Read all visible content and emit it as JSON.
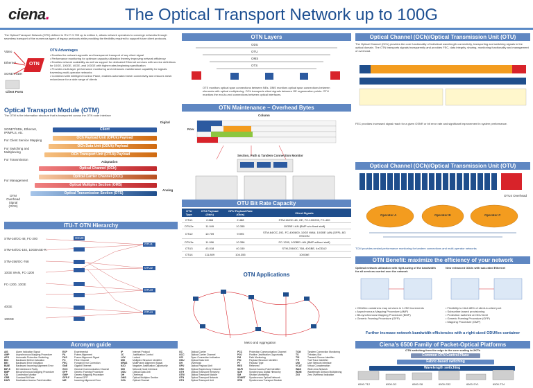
{
  "header": {
    "logo": "ciena",
    "title": "The Optical Transport Network up to 100G"
  },
  "intro": {
    "text": "The Optical Transport Network (OTN) defined in ITU-T G.709 up to edition 4, allows network operators to converge networks through seamless transport of the numerous types of legacy protocols while providing the flexibility required to support future client protocols.",
    "advantages_title": "OTN Advantages",
    "advantages": [
      "Enables the network-agnostic and transparent transport of any client signal",
      "Performance monitoring for optimum capacity utilization thereby improving network efficiency",
      "Enables network scalability as well as support for dedicated Ethernet services with service definitions for 10GE, 100GE, 40GE, and 100GE with higher rates beginning specification",
      "Provides multi-layer performance monitoring and enhances maintenance capability for signals traversing multi-operator networks",
      "Combined with intelligent Control Plane, enables automated mesh connectivity and reduces mesh redundance for a wide range of clients"
    ],
    "client_labels": [
      "Video",
      "Ethernet",
      "SONET/SDH",
      "Client Ports"
    ],
    "otn_label": "OTN"
  },
  "otm": {
    "title": "Optical Transport Module (OTM)",
    "subtitle": "The OTM is the information structure that is transported across the OTN node interface",
    "side_labels": [
      "SONET/SDH, Ethernet, IP/MPLS, etc.",
      "For Client Service Mapping",
      "For Switching and Multiplexing",
      "For Transmission",
      "For Management",
      "OTM Overhead Signal (OOS)"
    ],
    "layers": [
      "Client",
      "OCh Payload Unit (OPUk) Payload",
      "OCh Data Unit (ODUk) Payload",
      "OCh Transport Unit (OTUk) Payload",
      "Adaptation",
      "Optical Channel (OCh)",
      "Optical Carrier Channel (OCC)",
      "Optical Multiplex Section (OMS)",
      "Optical Transmission Section (OTS)"
    ],
    "domain_labels": [
      "Digital",
      "Analog"
    ]
  },
  "hierarchy": {
    "title": "ITU-T OTN Hierarchy",
    "left_labels": [
      "STM-16/OC-48, FC-200",
      "STM-64/OC-192, 10GBASE-R",
      "STM-256/OC-768",
      "10GE WAN, FC-1200",
      "FC-1200, 10GE",
      "40GE",
      "100GE"
    ],
    "nodes": [
      "ODU0",
      "ODU1",
      "ODU2",
      "ODU2e",
      "ODU3",
      "ODU4",
      "ODUflex",
      "OTU1",
      "OTU2",
      "OTU3",
      "OTU4"
    ]
  },
  "acronyms": {
    "title": "Acronym guide",
    "columns": [
      [
        [
          "AIS",
          "Alarm Indication Signal"
        ],
        [
          "AMP",
          "Asynchronous Mapping Procedure"
        ],
        [
          "APS",
          "Automatic Protection Switching"
        ],
        [
          "BDI",
          "Backward Defect Indication"
        ],
        [
          "BEI",
          "Backward Error Indication"
        ],
        [
          "BIAE",
          "Backward Incoming Alignment Error"
        ],
        [
          "BIP-8",
          "Bit Interleaved Parity"
        ],
        [
          "BMP",
          "Bit-synchronous Mapping Procedure"
        ],
        [
          "CM",
          "Connection Monitor"
        ],
        [
          "CBR",
          "Constant Bit Rate"
        ],
        [
          "DAPI",
          "Destination Access Point Identifier"
        ]
      ],
      [
        [
          "EXP",
          "Experimental"
        ],
        [
          "FA",
          "Frame Alignment"
        ],
        [
          "FAS",
          "Frame Alignment Signal"
        ],
        [
          "FC",
          "Fibre Channel"
        ],
        [
          "FEC",
          "Forward Error Correction"
        ],
        [
          "GbE",
          "Gigabit Ethernet"
        ],
        [
          "GCC",
          "General Communication Channel"
        ],
        [
          "GFP",
          "Generic Framing Procedure"
        ],
        [
          "GMP",
          "Generic Mapping Procedure"
        ],
        [
          "GFP-F",
          "Framed GFP"
        ],
        [
          "IAE",
          "Incoming Alignment Error"
        ]
      ],
      [
        [
          "IP",
          "Internet Protocol"
        ],
        [
          "JC",
          "Justification Control"
        ],
        [
          "LCK",
          "Locked"
        ],
        [
          "MSI",
          "Multiplex Structure Identifier"
        ],
        [
          "MFAS",
          "MultiFrame Alignment Signal"
        ],
        [
          "NJO",
          "Negative Justification Opportunity"
        ],
        [
          "NNI",
          "Network Node Interface"
        ],
        [
          "ODU",
          "Optical Data Unit"
        ],
        [
          "OH",
          "Overhead"
        ],
        [
          "OMS",
          "Optical Multiplex Section"
        ],
        [
          "OCh",
          "Optical Channel"
        ]
      ],
      [
        [
          "OC",
          "Optical Carrier"
        ],
        [
          "OCC",
          "Optical Carrier Channel"
        ],
        [
          "OCI",
          "Open Connection Indication"
        ],
        [
          "ODU",
          "Optical Data Unit"
        ],
        [
          "OH",
          "Overhead"
        ],
        [
          "OPU",
          "Optical Payload Unit"
        ],
        [
          "OSC",
          "Optical Supervisory Channel"
        ],
        [
          "OTH",
          "Optical Transport Hierarchy"
        ],
        [
          "OTM",
          "Optical Transport Module"
        ],
        [
          "OTN",
          "Optical Transport Network"
        ],
        [
          "OTU",
          "Optical Transport Unit"
        ]
      ],
      [
        [
          "PCC",
          "Protection Communication Channel"
        ],
        [
          "PJO",
          "Positive Justification Opportunity"
        ],
        [
          "PM",
          "Path Monitoring"
        ],
        [
          "PSI",
          "Payload Structure Identifier"
        ],
        [
          "PT",
          "Payload Type"
        ],
        [
          "RES",
          "Reserved"
        ],
        [
          "SAPI",
          "Source Access Point Identifier"
        ],
        [
          "SDH",
          "Synchronous Digital Hierarchy"
        ],
        [
          "SM",
          "Section Monitoring"
        ],
        [
          "SONET",
          "Synchronous Optical Network"
        ],
        [
          "STM",
          "Synchronous Transport Module"
        ]
      ],
      [
        [
          "TCM",
          "Tandem Connection Monitoring"
        ],
        [
          "TS",
          "Tributary Slot"
        ],
        [
          "TSI",
          "Transmit Source Identifier"
        ],
        [
          "TTI",
          "Trail Trace Identifier"
        ],
        [
          "UNI",
          "User Network Interface"
        ],
        [
          "VCAT",
          "Virtual Concatenation"
        ],
        [
          "WAN",
          "Wide Area Network"
        ],
        [
          "WDM",
          "Wavelength Division Multiplexing"
        ],
        [
          "ZOI",
          "Zero Overhead Indication"
        ]
      ]
    ]
  },
  "layers_panel": {
    "title": "OTN Layers",
    "labels": [
      "OTS",
      "OMS",
      "OCh",
      "OTU",
      "ODU",
      "Client"
    ],
    "notes": "OTS monitors optical span connections between NEs. OMS monitors optical span connections between elements with optical multiplexing. OCh transports client signals between OE regeneration points. OTU monitors the end-to-end connections between optical interfaces."
  },
  "maintenance": {
    "title": "OTN Maintenance – Overhead Bytes",
    "column_label": "Column",
    "row_label": "Row",
    "field_labels": [
      "FAS",
      "MFAS",
      "SM",
      "GCC0",
      "RES",
      "TCM ACT",
      "TCM6",
      "TCM5",
      "TCM4",
      "FTFL",
      "TCM3",
      "TCM2",
      "TCM1",
      "PM",
      "EXP",
      "GCC1",
      "GCC2",
      "APS/PCC",
      "RES",
      "PSI",
      "JC",
      "NJO",
      "PJO"
    ],
    "subtitles": [
      "Section, Path & Tandem Connection Monitor"
    ]
  },
  "bitrate": {
    "title": "OTU Bit Rate Capacity",
    "headers": [
      "OTU Type",
      "OTU Payload (Gb/s)",
      "OPU Payload Rate (Gb/s)",
      "Client Signals"
    ],
    "rows": [
      [
        "OTU1",
        "2.666",
        "2.488",
        "STM-16/OC-48, GE, FC-100/200, FC-400"
      ],
      [
        "OTU2e",
        "11.049",
        "10.355",
        "10GBE LAN (BMP w/o fixed stuff)"
      ],
      [
        "OTU2",
        "10.709",
        "9.995",
        "STM-64/OC-192, FC-400/800, 10GE WAN, 10GBE LAN (GFP), 8G ESCON"
      ],
      [
        "OTU3e",
        "11.096",
        "10.356",
        "FC-1200, 10GBE LAN (BMP w/fixed stuff)"
      ],
      [
        "OTU3",
        "43.018",
        "40.150",
        "STM-256/OC-768, 40GBE, 4xODU2"
      ],
      [
        "OTU4",
        "111.809",
        "104.355",
        "100GbE"
      ]
    ]
  },
  "applications": {
    "title": "OTN Applications",
    "legend": [
      "Metro and Aggregation"
    ]
  },
  "och_top": {
    "title": "Optical Channel (OCh)/Optical Transmission Unit (OTU)",
    "text": "The Optical Channel (OCh) provides the core functionality of individual wavelength connectivity, transporting and switching signals in the optical domain. The OTN transports signals transparently and provides FEC, data integrity, sharing, monitoring functionality and management of overhead.",
    "note": "FEC provides increased signal reach for a given OSNR or bit error rate and significant improvement in system performance."
  },
  "och_mid": {
    "title": "Optical Channel (OCh)/Optical Transmission Unit (OTU)",
    "labels": [
      "Operator A",
      "Operator B",
      "Operator C",
      "OTU4 Overhead",
      "TCM Overhead"
    ],
    "footer": "TCM provides nested performance monitoring for tandem connections and multi-operator networks"
  },
  "benefit": {
    "title": "OTN Benefit: maximize the efficiency of your network",
    "left_head": "Optimal network utilization with right-sizing of the bandwidth for all services carried over the network",
    "right_head": "New enhanced ODUs with sub-rated Ethernet",
    "bullets_left": [
      "ODUflex containers map services in 1.25G increments",
      "Asynchronous Mapping Procedure (AMP)",
      "Bit-synchronous Mapping Procedure (BMP)",
      "Generic Framing Procedure (GFP)"
    ],
    "bullets_right": [
      "Flexibility to hitch 88% of client-to-client port",
      "Subscriber-based provisioning",
      "Protection switched at ODU level",
      "Generic Framing Procedure (GFP)",
      "Mapping Procedure (GMP)"
    ],
    "footer": "Further increase network bandwidth efficiencies with a right-sized ODUflex container"
  },
  "family": {
    "title": "Ciena's 6500 Family of Packet-Optical Platforms",
    "subtitle": "OTN switching from the edge to the core scaling to 2KTb",
    "bands": [
      "Common OTN Control Plane",
      "Fabric-based switching",
      "Wavelength switching"
    ],
    "platforms": [
      "6500-T12",
      "6500-D2",
      "6500-S8",
      "6500-S32",
      "6500-SY1",
      "6500-T24"
    ]
  },
  "colors": {
    "accent": "#1d4f91",
    "section_bar": "#5f87c2",
    "brand_magenta": "#d8005a",
    "red": "#d8232a",
    "orange": "#f39c1f",
    "green": "#8cc63f"
  }
}
